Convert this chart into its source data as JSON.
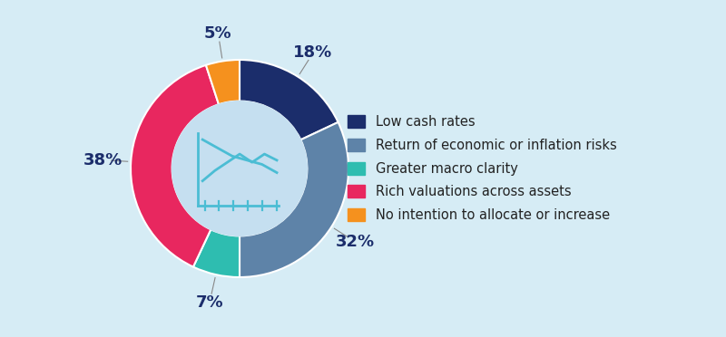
{
  "labels": [
    "Low cash rates",
    "Return of economic or inflation risks",
    "Greater macro clarity",
    "Rich valuations across assets",
    "No intention to allocate or increase"
  ],
  "values": [
    18,
    32,
    7,
    38,
    5
  ],
  "colors": [
    "#1b2d6b",
    "#5e83a8",
    "#2ebdb0",
    "#e8275f",
    "#f5911e"
  ],
  "pct_labels": [
    "18%",
    "32%",
    "7%",
    "38%",
    "5%"
  ],
  "background_color": "#d6ecf5",
  "right_bg": "#ffffff",
  "inner_color": "#c5dff0",
  "legend_fontsize": 10.5,
  "pct_fontsize": 13,
  "pct_color": "#1b2d6b",
  "donut_width": 0.38
}
